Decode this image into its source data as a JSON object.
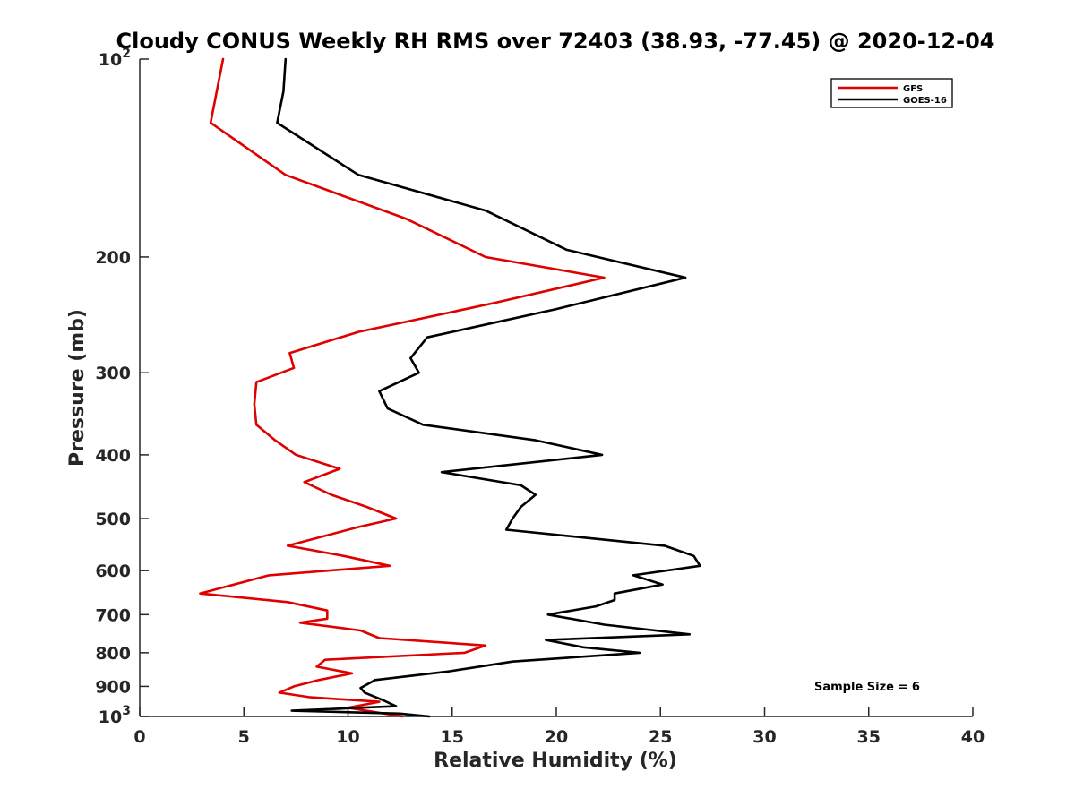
{
  "chart_data": {
    "type": "line",
    "title": "Cloudy CONUS Weekly RH RMS over 72403 (38.93, -77.45) @ 2020-12-04",
    "xlabel": "Relative Humidity (%)",
    "ylabel": "Pressure (mb)",
    "xlim": [
      0,
      40
    ],
    "ylim": [
      100,
      1000
    ],
    "y_scale": "log",
    "y_reversed": true,
    "grid": false,
    "legend_position": "top-right",
    "annotation": "Sample Size = 6",
    "x_ticks": [
      0,
      5,
      10,
      15,
      20,
      25,
      30,
      35,
      40
    ],
    "x_tick_labels": [
      "0",
      "5",
      "10",
      "15",
      "20",
      "25",
      "30",
      "35",
      "40"
    ],
    "y_ticks": [
      100,
      200,
      300,
      400,
      500,
      600,
      700,
      800,
      900,
      1000
    ],
    "y_tick_labels": [
      {
        "base": "10",
        "sup": "2"
      },
      {
        "base": "200",
        "sup": ""
      },
      {
        "base": "300",
        "sup": ""
      },
      {
        "base": "400",
        "sup": ""
      },
      {
        "base": "500",
        "sup": ""
      },
      {
        "base": "600",
        "sup": ""
      },
      {
        "base": "700",
        "sup": ""
      },
      {
        "base": "800",
        "sup": ""
      },
      {
        "base": "900",
        "sup": ""
      },
      {
        "base": "10",
        "sup": "3"
      }
    ],
    "series": [
      {
        "name": "GFS",
        "color": "#e00000",
        "points": [
          [
            4.0,
            100
          ],
          [
            3.4,
            125
          ],
          [
            7.0,
            150
          ],
          [
            12.8,
            175
          ],
          [
            16.6,
            200
          ],
          [
            22.3,
            215
          ],
          [
            17.0,
            235
          ],
          [
            10.5,
            260
          ],
          [
            7.2,
            280
          ],
          [
            7.4,
            295
          ],
          [
            5.6,
            310
          ],
          [
            5.5,
            335
          ],
          [
            5.6,
            360
          ],
          [
            6.5,
            380
          ],
          [
            7.5,
            400
          ],
          [
            9.6,
            420
          ],
          [
            7.9,
            440
          ],
          [
            9.2,
            460
          ],
          [
            10.9,
            480
          ],
          [
            12.3,
            500
          ],
          [
            10.5,
            515
          ],
          [
            7.1,
            550
          ],
          [
            9.8,
            570
          ],
          [
            12.0,
            590
          ],
          [
            6.2,
            610
          ],
          [
            2.9,
            650
          ],
          [
            7.1,
            670
          ],
          [
            9.0,
            690
          ],
          [
            9.0,
            710
          ],
          [
            7.7,
            720
          ],
          [
            10.6,
            740
          ],
          [
            11.5,
            760
          ],
          [
            16.6,
            780
          ],
          [
            15.6,
            800
          ],
          [
            8.9,
            820
          ],
          [
            8.5,
            840
          ],
          [
            10.2,
            860
          ],
          [
            8.6,
            880
          ],
          [
            7.4,
            900
          ],
          [
            6.7,
            920
          ],
          [
            8.2,
            935
          ],
          [
            11.5,
            950
          ],
          [
            10.0,
            970
          ],
          [
            12.6,
            1000
          ]
        ]
      },
      {
        "name": "GOES-16",
        "color": "#000000",
        "points": [
          [
            7.0,
            100
          ],
          [
            6.9,
            112
          ],
          [
            6.6,
            125
          ],
          [
            10.5,
            150
          ],
          [
            16.6,
            170
          ],
          [
            20.5,
            195
          ],
          [
            26.2,
            215
          ],
          [
            20.0,
            240
          ],
          [
            13.8,
            265
          ],
          [
            13.0,
            285
          ],
          [
            13.4,
            300
          ],
          [
            11.5,
            320
          ],
          [
            11.9,
            340
          ],
          [
            13.6,
            360
          ],
          [
            19.0,
            380
          ],
          [
            22.2,
            400
          ],
          [
            14.5,
            425
          ],
          [
            18.3,
            445
          ],
          [
            19.0,
            460
          ],
          [
            18.3,
            480
          ],
          [
            17.9,
            500
          ],
          [
            17.6,
            520
          ],
          [
            25.2,
            550
          ],
          [
            26.6,
            570
          ],
          [
            26.9,
            590
          ],
          [
            23.7,
            610
          ],
          [
            25.1,
            630
          ],
          [
            22.8,
            650
          ],
          [
            22.8,
            665
          ],
          [
            21.9,
            680
          ],
          [
            19.6,
            700
          ],
          [
            22.3,
            725
          ],
          [
            26.4,
            750
          ],
          [
            19.5,
            765
          ],
          [
            21.3,
            785
          ],
          [
            24.0,
            800
          ],
          [
            17.9,
            825
          ],
          [
            14.7,
            855
          ],
          [
            11.3,
            880
          ],
          [
            10.6,
            905
          ],
          [
            10.8,
            920
          ],
          [
            11.7,
            945
          ],
          [
            12.3,
            965
          ],
          [
            7.3,
            980
          ],
          [
            12.5,
            990
          ],
          [
            13.9,
            1000
          ]
        ]
      }
    ]
  }
}
